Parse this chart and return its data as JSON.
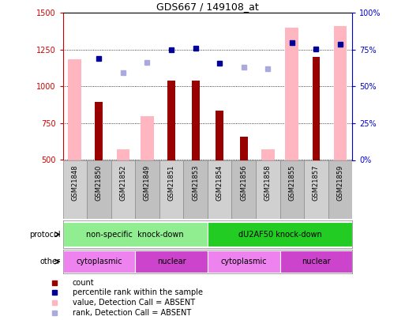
{
  "title": "GDS667 / 149108_at",
  "samples": [
    "GSM21848",
    "GSM21850",
    "GSM21852",
    "GSM21849",
    "GSM21851",
    "GSM21853",
    "GSM21854",
    "GSM21856",
    "GSM21858",
    "GSM21855",
    "GSM21857",
    "GSM21859"
  ],
  "count_values": [
    null,
    893,
    null,
    null,
    1040,
    1040,
    835,
    660,
    null,
    null,
    1200,
    null
  ],
  "value_absent": [
    1185,
    null,
    570,
    800,
    null,
    null,
    null,
    null,
    570,
    1400,
    null,
    1410
  ],
  "rank_absent": [
    null,
    null,
    1095,
    1165,
    null,
    null,
    null,
    1130,
    1120,
    null,
    null,
    null
  ],
  "percentile_rank": [
    null,
    1190,
    null,
    null,
    1250,
    1260,
    1160,
    null,
    null,
    1295,
    1255,
    1285
  ],
  "ylim_left": [
    500,
    1500
  ],
  "ylim_right": [
    0,
    100
  ],
  "yticks_left": [
    500,
    750,
    1000,
    1250,
    1500
  ],
  "yticks_right": [
    0,
    25,
    50,
    75,
    100
  ],
  "ytick_labels_right": [
    "0%",
    "25%",
    "50%",
    "75%",
    "100%"
  ],
  "protocol_groups": [
    {
      "label": "non-specific  knock-down",
      "start": 0,
      "end": 6,
      "color": "#90ee90"
    },
    {
      "label": "dU2AF50 knock-down",
      "start": 6,
      "end": 12,
      "color": "#22cc22"
    }
  ],
  "other_groups": [
    {
      "label": "cytoplasmic",
      "start": 0,
      "end": 3,
      "color": "#ee82ee"
    },
    {
      "label": "nuclear",
      "start": 3,
      "end": 6,
      "color": "#cc44cc"
    },
    {
      "label": "cytoplasmic",
      "start": 6,
      "end": 9,
      "color": "#ee82ee"
    },
    {
      "label": "nuclear",
      "start": 9,
      "end": 12,
      "color": "#cc44cc"
    }
  ],
  "bar_color_dark_red": "#990000",
  "bar_color_pink": "#ffb6c1",
  "dot_color_dark_blue": "#000099",
  "dot_color_light_blue": "#aaaadd",
  "bg_color": "#ffffff",
  "left_axis_color": "#cc0000",
  "right_axis_color": "#0000cc",
  "legend_items": [
    {
      "color": "#990000",
      "label": "count"
    },
    {
      "color": "#000099",
      "label": "percentile rank within the sample"
    },
    {
      "color": "#ffb6c1",
      "label": "value, Detection Call = ABSENT"
    },
    {
      "color": "#aaaadd",
      "label": "rank, Detection Call = ABSENT"
    }
  ]
}
